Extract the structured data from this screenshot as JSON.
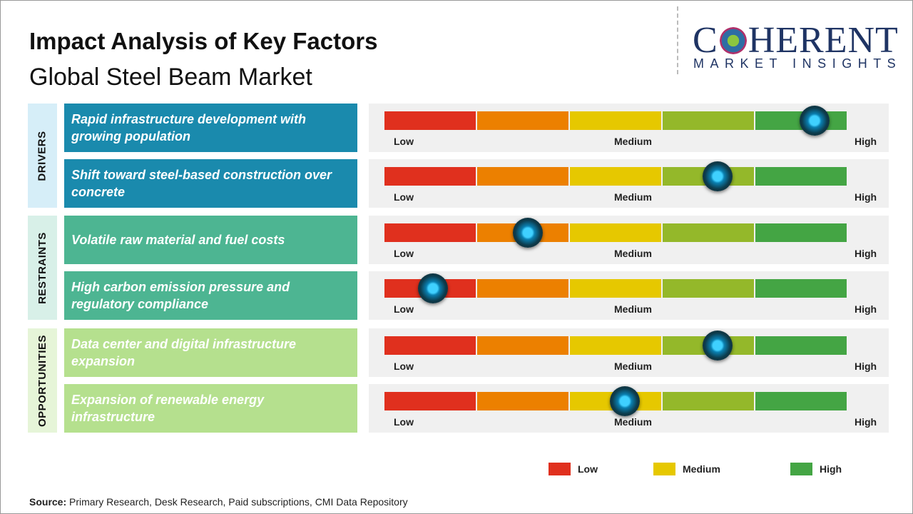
{
  "header": {
    "title": "Impact Analysis of Key Factors",
    "subtitle": "Global Steel Beam Market"
  },
  "logo": {
    "line1_a": "C",
    "line1_b": "HERENT",
    "line2": "MARKET INSIGHTS"
  },
  "colors": {
    "low": "#e0301e",
    "low_mid": "#ec8000",
    "medium": "#e6c800",
    "mid_high": "#94b82a",
    "high": "#44a544",
    "drivers": "#1a8aad",
    "restraints": "#4db592",
    "opportunities": "#b5e08e"
  },
  "scale": {
    "low": "Low",
    "medium": "Medium",
    "high": "High"
  },
  "categories": [
    {
      "label": "DRIVERS",
      "factors": [
        {
          "text": "Rapid infrastructure development with growing population",
          "impact": 0.93
        },
        {
          "text": "Shift toward steel-based construction over concrete",
          "impact": 0.72
        }
      ]
    },
    {
      "label": "RESTRAINTS",
      "factors": [
        {
          "text": "Volatile raw material and fuel costs",
          "impact": 0.31
        },
        {
          "text": "High carbon emission pressure and regulatory compliance",
          "impact": 0.105
        }
      ]
    },
    {
      "label": "OPPORTUNITIES",
      "factors": [
        {
          "text": "Data center and digital infrastructure expansion",
          "impact": 0.72
        },
        {
          "text": "Expansion of renewable energy infrastructure",
          "impact": 0.52
        }
      ]
    }
  ],
  "legend": [
    {
      "label": "Low",
      "color": "#e0301e"
    },
    {
      "label": "Medium",
      "color": "#e6c800"
    },
    {
      "label": "High",
      "color": "#44a544"
    }
  ],
  "source": {
    "label": "Source:",
    "text": " Primary Research, Desk Research, Paid subscriptions, CMI Data Repository"
  }
}
